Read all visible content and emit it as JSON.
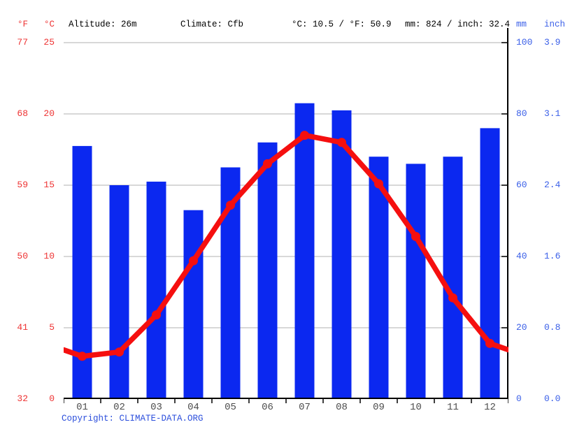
{
  "header": {
    "fahrenheit_unit": "°F",
    "celsius_unit": "°C",
    "altitude": "Altitude: 26m",
    "climate": "Climate: Cfb",
    "temperature_summary": "°C: 10.5 / °F: 50.9",
    "precipitation_summary": "mm: 824 / inch: 32.4",
    "mm_unit": "mm",
    "inch_unit": "inch"
  },
  "axes": {
    "fahrenheit_ticks": [
      "77",
      "68",
      "59",
      "50",
      "41",
      "32"
    ],
    "celsius_ticks": [
      "25",
      "20",
      "15",
      "10",
      "5",
      "0"
    ],
    "mm_ticks": [
      "100",
      "80",
      "60",
      "40",
      "20",
      "0"
    ],
    "inch_ticks": [
      "3.9",
      "3.1",
      "2.4",
      "1.6",
      "0.8",
      "0.0"
    ]
  },
  "chart_data": {
    "type": "combo",
    "categories": [
      "01",
      "02",
      "03",
      "04",
      "05",
      "06",
      "07",
      "08",
      "09",
      "10",
      "11",
      "12"
    ],
    "series": [
      {
        "name": "precipitation",
        "type": "bar",
        "unit": "mm",
        "color": "#0b28f0",
        "values": [
          71,
          60,
          61,
          53,
          65,
          72,
          83,
          81,
          68,
          66,
          68,
          76
        ]
      },
      {
        "name": "temperature",
        "type": "line",
        "unit": "°C",
        "color": "#f50f0f",
        "values": [
          3.0,
          3.3,
          5.9,
          9.7,
          13.6,
          16.5,
          18.5,
          18.0,
          15.1,
          11.4,
          7.1,
          3.9
        ]
      }
    ],
    "title": "",
    "xlabel": "month",
    "left_axis": {
      "units": [
        "°F",
        "°C"
      ],
      "range_c": [
        0,
        25
      ],
      "range_f": [
        32,
        77
      ]
    },
    "right_axis": {
      "units": [
        "mm",
        "inch"
      ],
      "range_mm": [
        0,
        100
      ],
      "range_inch": [
        0.0,
        3.9
      ]
    },
    "grid": true,
    "legend_position": "none",
    "gridline_color": "#cccccc",
    "month_label_color": "#4d4d4d",
    "left_label_color": "#ee3333",
    "right_label_color": "#3a5fe8"
  },
  "footer": {
    "copyright_label": "Copyright:",
    "copyright_link": "CLIMATE-DATA.ORG"
  }
}
